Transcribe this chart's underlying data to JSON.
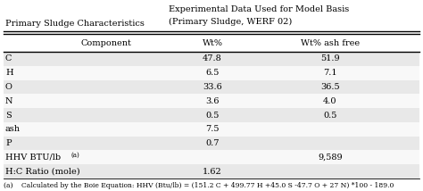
{
  "title_left": "Primary Sludge Characteristics",
  "title_right_line1": "Experimental Data Used for Model Basis",
  "title_right_line2": "(Primary Sludge, WERF 02)",
  "col_headers": [
    "Component",
    "Wt%",
    "Wt% ash free"
  ],
  "rows": [
    [
      "C",
      "47.8",
      "51.9"
    ],
    [
      "H",
      "6.5",
      "7.1"
    ],
    [
      "O",
      "33.6",
      "36.5"
    ],
    [
      "N",
      "3.6",
      "4.0"
    ],
    [
      "S",
      "0.5",
      "0.5"
    ],
    [
      "ash",
      "7.5",
      ""
    ],
    [
      "P",
      "0.7",
      ""
    ],
    [
      "HHV BTU/lb",
      "",
      "9,589"
    ],
    [
      "H:C Ratio (mole)",
      "1.62",
      ""
    ]
  ],
  "footnote": "(a)    Calculated by the Boie Equation: HHV (Btu/lb) = (151.2 C + 499.77 H +45.0 S -47.7 O + 27 N) *100 - 189.0",
  "bg_color_odd": "#e8e8e8",
  "bg_color_even": "#f8f8f8",
  "text_color": "#000000",
  "font_size": 7.0
}
